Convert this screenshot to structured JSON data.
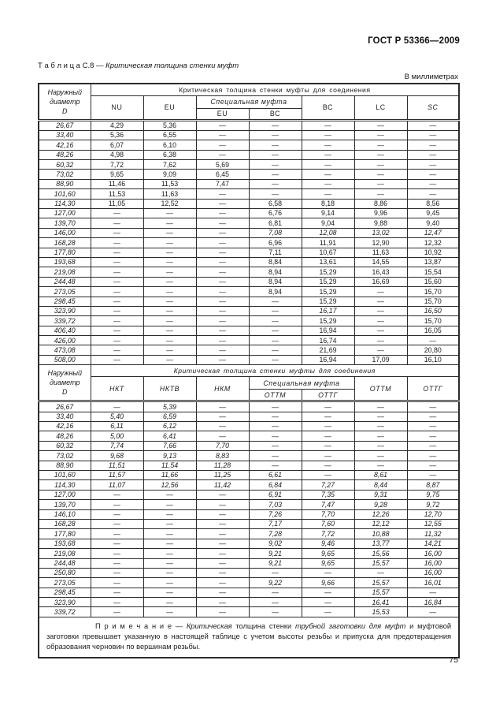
{
  "doc": {
    "code": "ГОСТ Р 53366—2009",
    "units": "В миллиметрах",
    "page_number": "75"
  },
  "title": {
    "segments": [
      {
        "text": "Т а б л и ц а   С.8 — ",
        "italic": false
      },
      {
        "text": "Критическая толщина стенки муфт",
        "italic": true
      }
    ]
  },
  "s1": {
    "corner": "Наружный\nдиаметр\nD",
    "span": "Критическая толщина стенки муфты для соединения",
    "col_nu": "NU",
    "col_eu": "EU",
    "special": "Специальная муфта",
    "sp_eu": "EU",
    "sp_vs": "ВС",
    "col_vs": "ВС",
    "col_lc": "LC",
    "col_sc": "SC",
    "data_italic": false,
    "rows": [
      {
        "d": "26,67",
        "v": [
          "4,29",
          "5,36",
          "—",
          "—",
          "—",
          "—",
          "—"
        ]
      },
      {
        "d": "33,40",
        "v": [
          "5,36",
          "6,55",
          "—",
          "—",
          "—",
          "—",
          "—"
        ]
      },
      {
        "d": "42,16",
        "v": [
          "6,07",
          "6,10",
          "—",
          "—",
          "—",
          "—",
          "—"
        ]
      },
      {
        "d": "48,26",
        "v": [
          "4,98",
          "6,38",
          "—",
          "—",
          "—",
          "—",
          "—"
        ]
      },
      {
        "d": "60,32",
        "v": [
          "7,72",
          "7,62",
          "5,69",
          "—",
          "—",
          "—",
          "—"
        ]
      },
      {
        "d": "73,02",
        "v": [
          "9,65",
          "9,09",
          "6,45",
          "—",
          "—",
          "—",
          "—"
        ]
      },
      {
        "d": "88,90",
        "v": [
          "11,46",
          "11,53",
          "7,47",
          "—",
          "—",
          "—",
          "—"
        ]
      },
      {
        "d": "101,60",
        "v": [
          "11,53",
          "11,63",
          "—",
          "—",
          "—",
          "—",
          "—"
        ]
      },
      {
        "d": "114,30",
        "v": [
          "11,05",
          "12,52",
          "—",
          "6,58",
          "8,18",
          "8,86",
          "8,56"
        ]
      },
      {
        "d": "127,00",
        "v": [
          "—",
          "—",
          "—",
          "6,76",
          "9,14",
          "9,96",
          "9,45"
        ]
      },
      {
        "d": "139,70",
        "v": [
          "—",
          "—",
          "—",
          "6,81",
          "9,04",
          "9,88",
          "9,40"
        ]
      },
      {
        "d": "146,00",
        "v": [
          "—",
          "—",
          "—",
          "7,08",
          "12,08",
          "13,02",
          "12,47"
        ],
        "it": true
      },
      {
        "d": "168,28",
        "v": [
          "—",
          "—",
          "—",
          "6,96",
          "11,91",
          "12,90",
          "12,32"
        ]
      },
      {
        "d": "177,80",
        "v": [
          "—",
          "—",
          "—",
          "7,11",
          "10,67",
          "11,63",
          "10,92"
        ]
      },
      {
        "d": "193,68",
        "v": [
          "—",
          "—",
          "—",
          "8,84",
          "13,61",
          "14,55",
          "13,87"
        ]
      },
      {
        "d": "219,08",
        "v": [
          "—",
          "—",
          "—",
          "8,94",
          "15,29",
          "16,43",
          "15,54"
        ]
      },
      {
        "d": "244,48",
        "v": [
          "—",
          "—",
          "—",
          "8,94",
          "15,29",
          "16,69",
          "15,60"
        ]
      },
      {
        "d": "273,05",
        "v": [
          "—",
          "—",
          "—",
          "8,94",
          "15,29",
          "—",
          "15,70"
        ]
      },
      {
        "d": "298,45",
        "v": [
          "—",
          "—",
          "—",
          "—",
          "15,29",
          "—",
          "15,70"
        ]
      },
      {
        "d": "323,90",
        "v": [
          "—",
          "—",
          "—",
          "—",
          "16,17",
          "—",
          "16,50"
        ],
        "it": true
      },
      {
        "d": "339,72",
        "v": [
          "—",
          "—",
          "—",
          "—",
          "15,29",
          "—",
          "15,70"
        ]
      },
      {
        "d": "406,40",
        "v": [
          "—",
          "—",
          "—",
          "—",
          "16,94",
          "—",
          "16,05"
        ]
      },
      {
        "d": "426,00",
        "v": [
          "—",
          "—",
          "—",
          "—",
          "16,74",
          "—",
          "—"
        ]
      },
      {
        "d": "473,08",
        "v": [
          "—",
          "—",
          "—",
          "—",
          "21,69",
          "—",
          "20,80"
        ]
      },
      {
        "d": "508,00",
        "v": [
          "—",
          "—",
          "—",
          "—",
          "16,94",
          "17,09",
          "16,10"
        ]
      }
    ]
  },
  "s2": {
    "corner": "Наружный\nдиаметр\nD",
    "span": "Критическая толщина стенки муфты для соединения",
    "col_nkt": "НКТ",
    "col_nktv": "НКТВ",
    "col_nkm": "НКМ",
    "special": "Специальная муфта",
    "sp_ottm": "ОТТМ",
    "sp_ottg": "ОТТГ",
    "col_ottm": "ОТТМ",
    "col_ottg": "ОТТГ",
    "data_italic": true,
    "rows": [
      {
        "d": "26,67",
        "v": [
          "—",
          "5,39",
          "—",
          "—",
          "—",
          "—",
          "—"
        ]
      },
      {
        "d": "33,40",
        "v": [
          "5,40",
          "6,59",
          "—",
          "—",
          "—",
          "—",
          "—"
        ]
      },
      {
        "d": "42,16",
        "v": [
          "6,11",
          "6,12",
          "—",
          "—",
          "—",
          "—",
          "—"
        ]
      },
      {
        "d": "48,26",
        "v": [
          "5,00",
          "6,41",
          "—",
          "—",
          "—",
          "—",
          "—"
        ]
      },
      {
        "d": "60,32",
        "v": [
          "7,74",
          "7,66",
          "7,70",
          "—",
          "—",
          "—",
          "—"
        ]
      },
      {
        "d": "73,02",
        "v": [
          "9,68",
          "9,13",
          "8,83",
          "—",
          "—",
          "—",
          "—"
        ]
      },
      {
        "d": "88,90",
        "v": [
          "11,51",
          "11,54",
          "11,28",
          "—",
          "—",
          "—",
          "—"
        ]
      },
      {
        "d": "101,60",
        "v": [
          "11,57",
          "11,66",
          "11,25",
          "6,61",
          "—",
          "8,61",
          "—"
        ]
      },
      {
        "d": "114,30",
        "v": [
          "11,07",
          "12,56",
          "11,42",
          "6,84",
          "7,27",
          "8,44",
          "8,87"
        ]
      },
      {
        "d": "127,00",
        "v": [
          "—",
          "—",
          "—",
          "6,91",
          "7,35",
          "9,31",
          "9,75"
        ]
      },
      {
        "d": "139,70",
        "v": [
          "—",
          "—",
          "—",
          "7,03",
          "7,47",
          "9,28",
          "9,72"
        ]
      },
      {
        "d": "146,10",
        "v": [
          "—",
          "—",
          "—",
          "7,26",
          "7,70",
          "12,26",
          "12,70"
        ]
      },
      {
        "d": "168,28",
        "v": [
          "—",
          "—",
          "—",
          "7,17",
          "7,60",
          "12,12",
          "12,55"
        ]
      },
      {
        "d": "177,80",
        "v": [
          "—",
          "—",
          "—",
          "7,28",
          "7,72",
          "10,88",
          "11,32"
        ]
      },
      {
        "d": "193,68",
        "v": [
          "—",
          "—",
          "—",
          "9,02",
          "9,46",
          "13,77",
          "14,21"
        ]
      },
      {
        "d": "219,08",
        "v": [
          "—",
          "—",
          "—",
          "9,21",
          "9,65",
          "15,56",
          "16,00"
        ]
      },
      {
        "d": "244,48",
        "v": [
          "—",
          "—",
          "—",
          "9,21",
          "9,65",
          "15,57",
          "16,00"
        ]
      },
      {
        "d": "250,80",
        "v": [
          "—",
          "—",
          "—",
          "—",
          "—",
          "—",
          "16,00"
        ]
      },
      {
        "d": "273,05",
        "v": [
          "—",
          "—",
          "—",
          "9,22",
          "9,66",
          "15,57",
          "16,01"
        ]
      },
      {
        "d": "298,45",
        "v": [
          "—",
          "—",
          "—",
          "—",
          "—",
          "15,57",
          "—"
        ]
      },
      {
        "d": "323,90",
        "v": [
          "—",
          "—",
          "—",
          "—",
          "—",
          "16,41",
          "16,84"
        ]
      },
      {
        "d": "339,72",
        "v": [
          "—",
          "—",
          "—",
          "—",
          "—",
          "15,53",
          "—"
        ]
      }
    ]
  },
  "note": {
    "segments": [
      {
        "text": "П р и м е ч а н и е — ",
        "italic": false
      },
      {
        "text": "Критическая",
        "italic": true
      },
      {
        "text": " толщина стенки ",
        "italic": false
      },
      {
        "text": "трубной заготовки для муфт",
        "italic": true
      },
      {
        "text": " и муфтовой заготовки превышает указанную в настоящей таблице с учетом высоты резьбы и припуска для предотвращения образования черновин по вершинам резьбы.",
        "italic": false
      }
    ]
  }
}
